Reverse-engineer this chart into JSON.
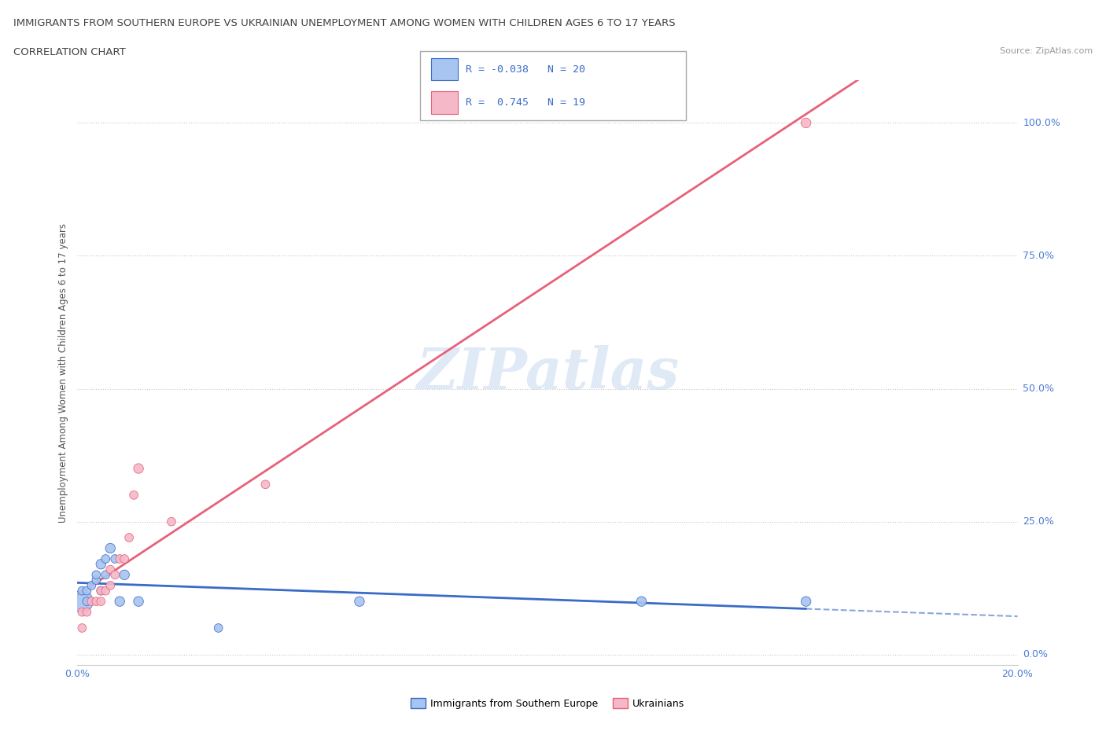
{
  "title_line1": "IMMIGRANTS FROM SOUTHERN EUROPE VS UKRAINIAN UNEMPLOYMENT AMONG WOMEN WITH CHILDREN AGES 6 TO 17 YEARS",
  "title_line2": "CORRELATION CHART",
  "source_text": "Source: ZipAtlas.com",
  "ylabel": "Unemployment Among Women with Children Ages 6 to 17 years",
  "xlim": [
    0.0,
    0.2
  ],
  "ylim": [
    -0.02,
    1.08
  ],
  "yticks": [
    0.0,
    0.25,
    0.5,
    0.75,
    1.0
  ],
  "ytick_labels": [
    "0.0%",
    "25.0%",
    "50.0%",
    "75.0%",
    "100.0%"
  ],
  "xticks": [
    0.0,
    0.04,
    0.08,
    0.12,
    0.16,
    0.2
  ],
  "r_blue": -0.038,
  "n_blue": 20,
  "r_pink": 0.745,
  "n_pink": 19,
  "blue_color": "#A8C4F0",
  "pink_color": "#F5B8C8",
  "blue_line_color": "#3A6BC8",
  "pink_line_color": "#E8607A",
  "grid_color": "#C8C8C8",
  "blue_scatter_x": [
    0.001,
    0.001,
    0.002,
    0.002,
    0.003,
    0.004,
    0.004,
    0.005,
    0.005,
    0.006,
    0.006,
    0.007,
    0.008,
    0.009,
    0.01,
    0.013,
    0.03,
    0.06,
    0.12,
    0.155
  ],
  "blue_scatter_y": [
    0.1,
    0.12,
    0.1,
    0.12,
    0.13,
    0.14,
    0.15,
    0.12,
    0.17,
    0.15,
    0.18,
    0.2,
    0.18,
    0.1,
    0.15,
    0.1,
    0.05,
    0.1,
    0.1,
    0.1
  ],
  "blue_scatter_size": [
    400,
    60,
    60,
    60,
    60,
    60,
    60,
    60,
    80,
    60,
    60,
    80,
    60,
    80,
    80,
    80,
    60,
    80,
    80,
    80
  ],
  "pink_scatter_x": [
    0.001,
    0.001,
    0.002,
    0.003,
    0.004,
    0.005,
    0.005,
    0.006,
    0.007,
    0.007,
    0.008,
    0.009,
    0.01,
    0.011,
    0.012,
    0.013,
    0.02,
    0.04,
    0.155
  ],
  "pink_scatter_y": [
    0.05,
    0.08,
    0.08,
    0.1,
    0.1,
    0.1,
    0.12,
    0.12,
    0.13,
    0.16,
    0.15,
    0.18,
    0.18,
    0.22,
    0.3,
    0.35,
    0.25,
    0.32,
    1.0
  ],
  "pink_scatter_size": [
    60,
    60,
    60,
    60,
    60,
    60,
    60,
    60,
    60,
    60,
    60,
    60,
    60,
    60,
    60,
    80,
    60,
    60,
    80
  ],
  "legend_r_blue": "R = -0.038",
  "legend_n_blue": "N = 20",
  "legend_r_pink": "R =  0.745",
  "legend_n_pink": "N = 19",
  "bottom_legend_blue": "Immigrants from Southern Europe",
  "bottom_legend_pink": "Ukrainians"
}
